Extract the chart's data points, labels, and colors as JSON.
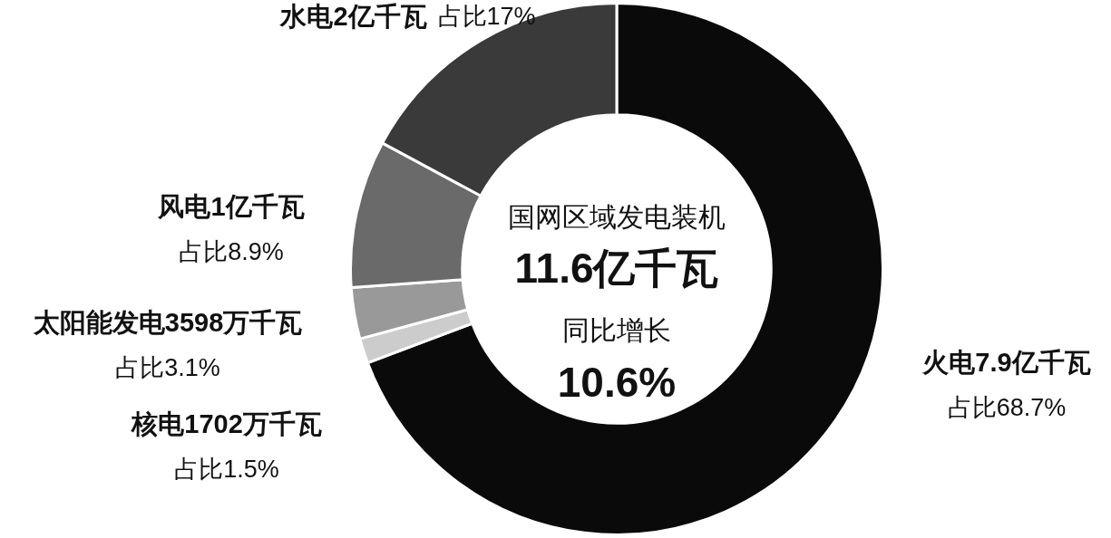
{
  "chart_data": {
    "type": "donut",
    "categories": [
      "火电7.9亿千瓦",
      "核电1702万千瓦",
      "太阳能发电3598万千瓦",
      "风电1亿千瓦",
      "水电2亿千瓦"
    ],
    "values": [
      68.7,
      1.5,
      3.1,
      8.9,
      17
    ],
    "value_labels": [
      "占比68.7%",
      "占比1.5%",
      "占比3.1%",
      "占比8.9%",
      "占比17%"
    ],
    "colors": [
      "#0a0a0a",
      "#cccccc",
      "#999999",
      "#6a6a6a",
      "#3a3a3a"
    ],
    "annotations": [
      "国网区域发电装机",
      "11.6亿千瓦",
      "同比增长",
      "10.6%"
    ],
    "legend": false
  }
}
